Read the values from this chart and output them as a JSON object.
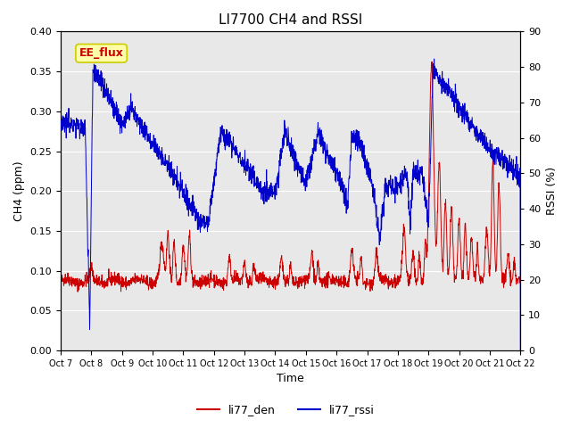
{
  "title": "LI7700 CH4 and RSSI",
  "xlabel": "Time",
  "ylabel_left": "CH4 (ppm)",
  "ylabel_right": "RSSI (%)",
  "ylim_left": [
    0.0,
    0.4
  ],
  "ylim_right": [
    0,
    90
  ],
  "yticks_left": [
    0.0,
    0.05,
    0.1,
    0.15,
    0.2,
    0.25,
    0.3,
    0.35,
    0.4
  ],
  "yticks_right": [
    0,
    10,
    20,
    30,
    40,
    50,
    60,
    70,
    80,
    90
  ],
  "xtick_labels": [
    "Oct 7",
    "Oct 8",
    "Oct 9",
    "Oct 10",
    "Oct 11",
    "Oct 12",
    "Oct 13",
    "Oct 14",
    "Oct 15",
    "Oct 16",
    "Oct 17",
    "Oct 18",
    "Oct 19",
    "Oct 20",
    "Oct 21",
    "Oct 22"
  ],
  "color_den": "#cc0000",
  "color_rssi": "#0000cc",
  "legend_label_den": "li77_den",
  "legend_label_rssi": "li77_rssi",
  "annotation_text": "EE_flux",
  "annotation_color": "#cc0000",
  "annotation_bg": "#ffffaa",
  "annotation_border": "#cccc00",
  "background_color": "#e8e8e8",
  "fig_bg": "#ffffff",
  "grid_color": "#ffffff",
  "title_fontsize": 11
}
